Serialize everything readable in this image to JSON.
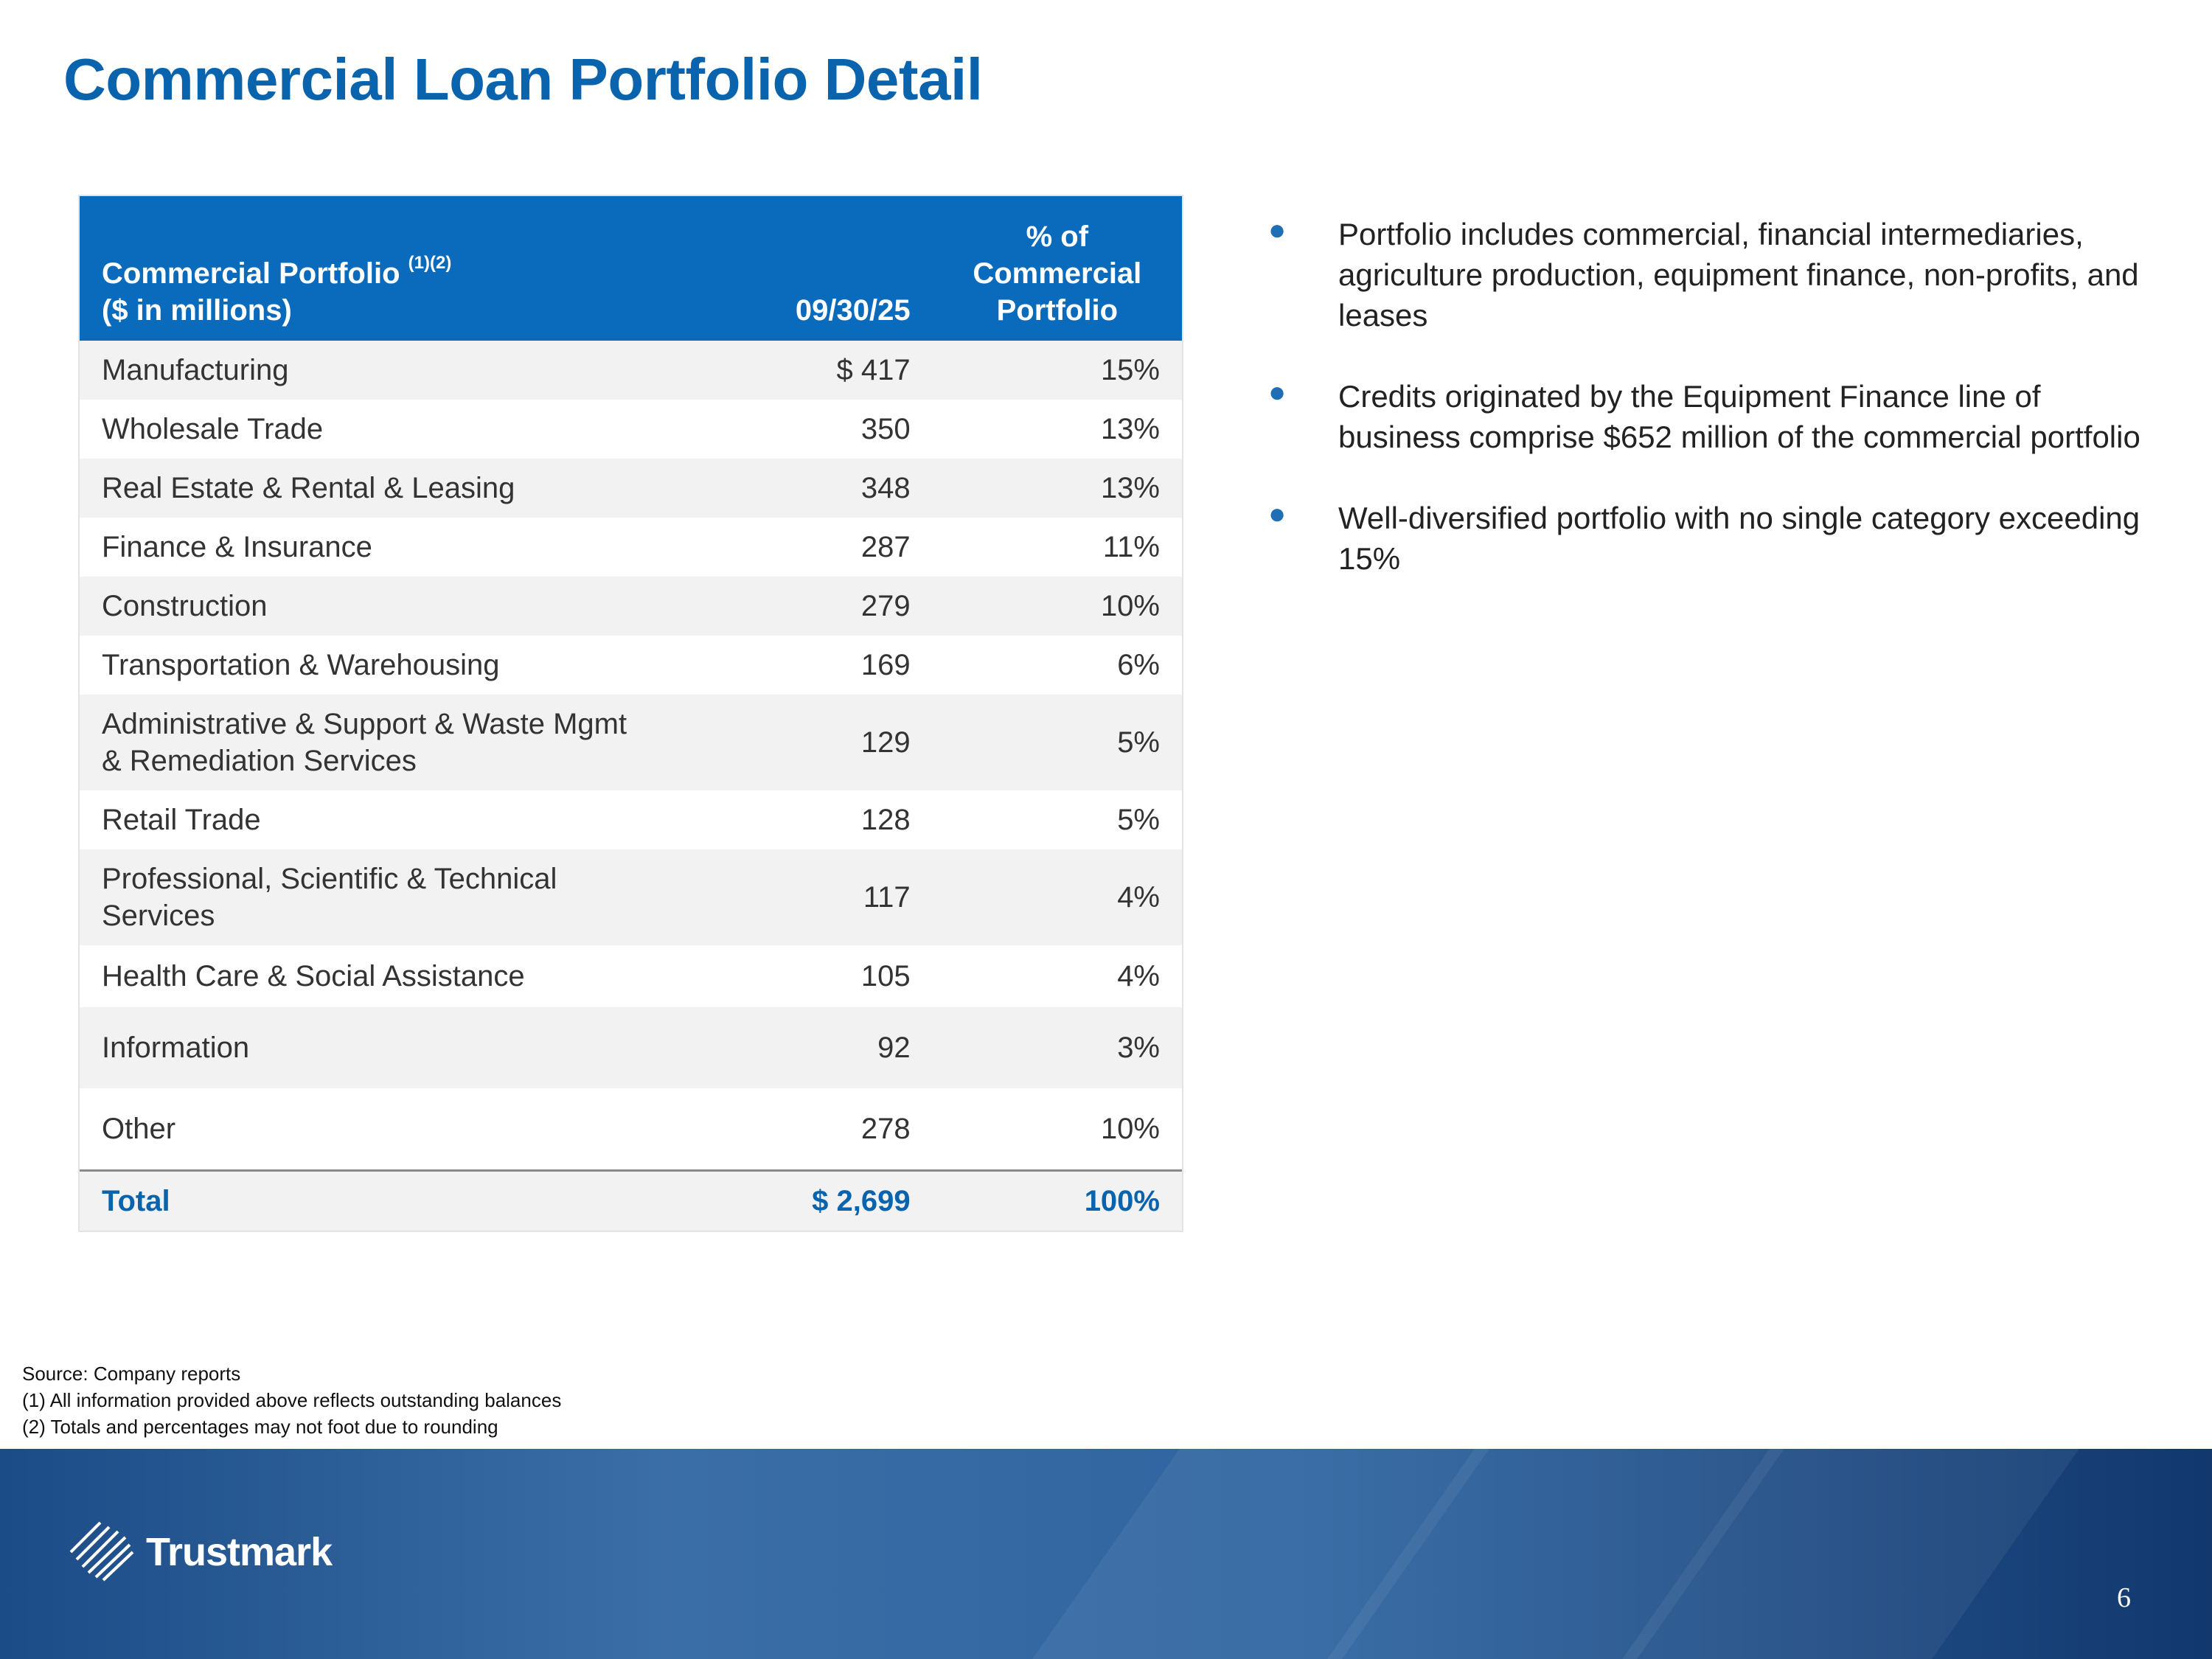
{
  "title": "Commercial Loan Portfolio Detail",
  "table": {
    "header": {
      "col1_line1": "Commercial Portfolio",
      "col1_sup": "(1)(2)",
      "col1_line2": "($ in millions)",
      "col2": "09/30/25",
      "col3_line1": "% of",
      "col3_line2": "Commercial",
      "col3_line3": "Portfolio"
    },
    "rows": [
      {
        "label": "Manufacturing",
        "value": "$ 417",
        "pct": "15%"
      },
      {
        "label": "Wholesale Trade",
        "value": "350",
        "pct": "13%"
      },
      {
        "label": "Real Estate & Rental & Leasing",
        "value": "348",
        "pct": "13%"
      },
      {
        "label": "Finance & Insurance",
        "value": "287",
        "pct": "11%"
      },
      {
        "label": "Construction",
        "value": "279",
        "pct": "10%"
      },
      {
        "label": "Transportation & Warehousing",
        "value": "169",
        "pct": "6%"
      },
      {
        "label_line1": "Administrative & Support & Waste Mgmt",
        "label_line2": "& Remediation Services",
        "value": "129",
        "pct": "5%"
      },
      {
        "label": "Retail Trade",
        "value": "128",
        "pct": "5%"
      },
      {
        "label_line1": "Professional, Scientific & Technical",
        "label_line2": "Services",
        "value": "117",
        "pct": "4%"
      },
      {
        "label": "Health Care & Social Assistance",
        "value": "105",
        "pct": "4%"
      },
      {
        "label": "Information",
        "value": "92",
        "pct": "3%"
      },
      {
        "label": "Other",
        "value": "278",
        "pct": "10%"
      }
    ],
    "total": {
      "label": "Total",
      "value": "$ 2,699",
      "pct": "100%"
    }
  },
  "bullets": [
    "Portfolio includes commercial, financial intermediaries, agriculture production, equipment finance, non-profits, and leases",
    "Credits originated by the Equipment Finance line of business comprise $652 million of the commercial portfolio",
    "Well-diversified portfolio with no single category exceeding 15%"
  ],
  "notes": [
    "Source: Company reports",
    "(1) All information provided above reflects outstanding balances",
    "(2) Totals and percentages may not foot due to rounding"
  ],
  "footer": {
    "logo_text": "Trustmark",
    "page_number": "6"
  },
  "colors": {
    "title_blue": "#0a64ad",
    "header_blue": "#0a6bbd",
    "footer_blue": "#1c4c87"
  },
  "icons": {
    "logo": "trustmark-logo-icon",
    "bullet": "bullet-dot-icon"
  }
}
